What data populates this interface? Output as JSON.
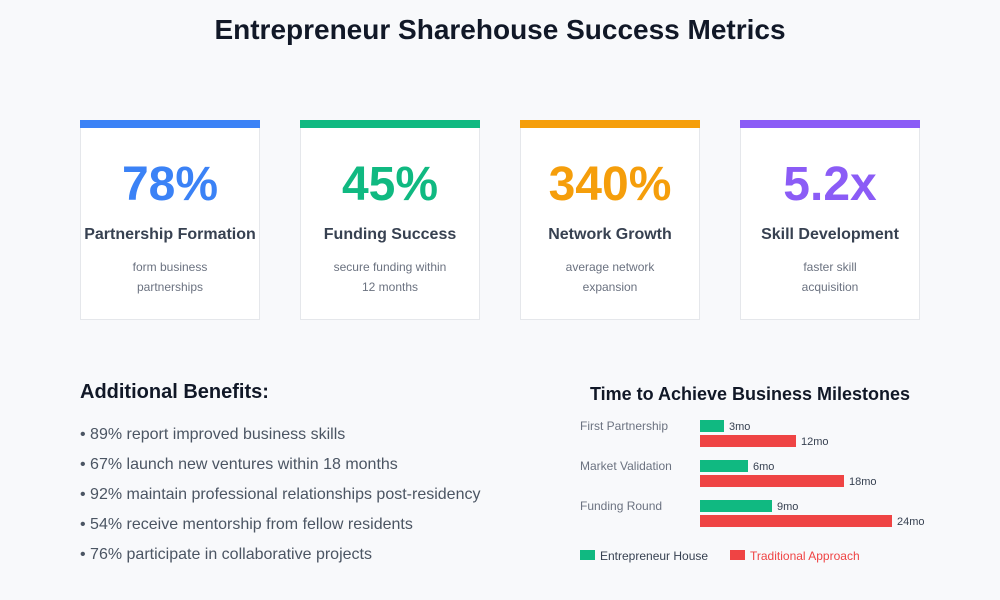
{
  "title": "Entrepreneur Sharehouse Success Metrics",
  "cards": [
    {
      "value": "78%",
      "label": "Partnership Formation",
      "desc_line1": "form business",
      "desc_line2": "partnerships",
      "color": "#3b82f6"
    },
    {
      "value": "45%",
      "label": "Funding Success",
      "desc_line1": "secure funding within",
      "desc_line2": "12 months",
      "color": "#10b981"
    },
    {
      "value": "340%",
      "label": "Network Growth",
      "desc_line1": "average network",
      "desc_line2": "expansion",
      "color": "#f59e0b"
    },
    {
      "value": "5.2x",
      "label": "Skill Development",
      "desc_line1": "faster skill",
      "desc_line2": "acquisition",
      "color": "#8b5cf6"
    }
  ],
  "benefits": {
    "title": "Additional Benefits:",
    "items": [
      "• 89% report improved business skills",
      "• 67% launch new ventures within 18 months",
      "• 92% maintain professional relationships post-residency",
      "• 54% receive mentorship from fellow residents",
      "• 76% participate in collaborative projects"
    ]
  },
  "chart_data": {
    "type": "bar",
    "orientation": "horizontal",
    "title": "Time to Achieve Business Milestones",
    "categories": [
      "First Partnership",
      "Market Validation",
      "Funding Round"
    ],
    "series": [
      {
        "name": "Entrepreneur House",
        "values": [
          3,
          6,
          9
        ],
        "labels": [
          "3mo",
          "6mo",
          "9mo"
        ],
        "color": "#10b981"
      },
      {
        "name": "Traditional Approach",
        "values": [
          12,
          18,
          24
        ],
        "labels": [
          "12mo",
          "18mo",
          "24mo"
        ],
        "color": "#ef4444"
      }
    ],
    "xlim": [
      0,
      24
    ],
    "legend": "bottom-left",
    "grid": false
  }
}
